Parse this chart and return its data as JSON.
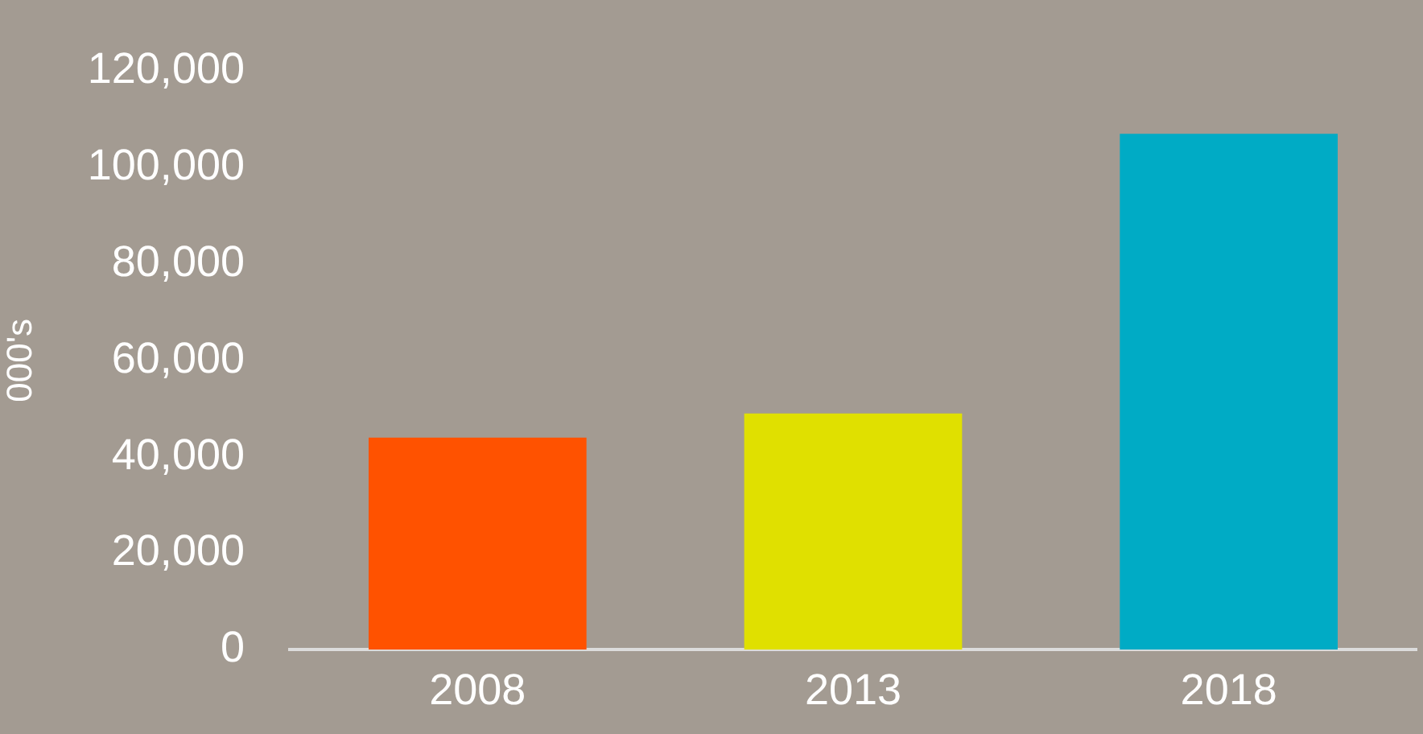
{
  "chart_data": {
    "type": "bar",
    "ylabel": "000's",
    "categories": [
      "2008",
      "2013",
      "2018"
    ],
    "values": [
      44000,
      49000,
      107000
    ],
    "colors": [
      "#ff5200",
      "#e0e000",
      "#00abc5"
    ],
    "ylim": [
      0,
      120000
    ],
    "yticks": [
      0,
      {
        "value": 20000,
        "label": "20,000"
      },
      {
        "value": 40000,
        "label": "40,000"
      },
      {
        "value": 60000,
        "label": "60,000"
      },
      {
        "value": 80000,
        "label": "80,000"
      },
      {
        "value": 100000,
        "label": "100,000"
      },
      {
        "value": 120000,
        "label": "120,000"
      }
    ],
    "grid": false,
    "legend": false
  }
}
